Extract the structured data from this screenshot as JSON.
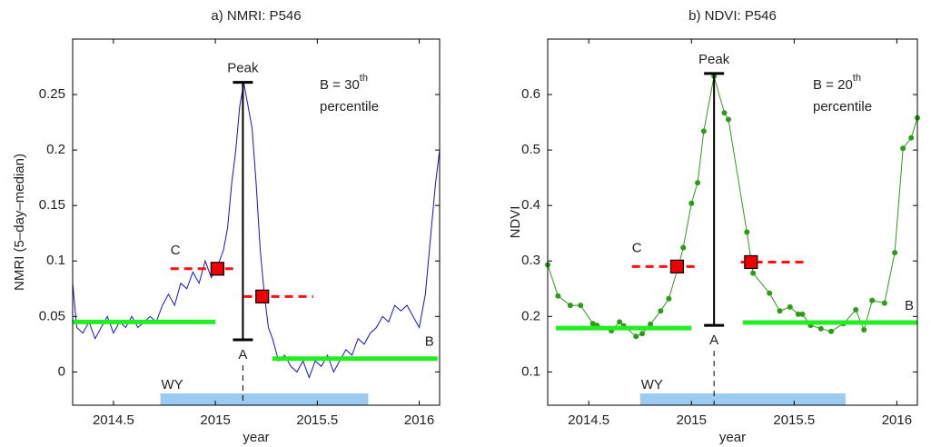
{
  "chart_data": [
    {
      "type": "line",
      "title": "a)  NMRI: P546",
      "x_label": "year",
      "y_label": "NMRI  (5–day–median)",
      "xlim": [
        2014.3,
        2016.1
      ],
      "ylim": [
        -0.03,
        0.3
      ],
      "xticks": [
        2014.5,
        2015,
        2015.5,
        2016
      ],
      "yticks": [
        0,
        0.05,
        0.1,
        0.15,
        0.2,
        0.25
      ],
      "color": "#1414c8",
      "markers": false,
      "x": [
        2014.3,
        2014.32,
        2014.35,
        2014.38,
        2014.41,
        2014.44,
        2014.47,
        2014.5,
        2014.53,
        2014.56,
        2014.59,
        2014.62,
        2014.65,
        2014.68,
        2014.71,
        2014.74,
        2014.77,
        2014.8,
        2014.83,
        2014.86,
        2014.89,
        2014.92,
        2014.95,
        2014.98,
        2015.01,
        2015.04,
        2015.06,
        2015.08,
        2015.1,
        2015.12,
        2015.14,
        2015.16,
        2015.18,
        2015.2,
        2015.22,
        2015.24,
        2015.26,
        2015.28,
        2015.31,
        2015.34,
        2015.37,
        2015.4,
        2015.43,
        2015.46,
        2015.49,
        2015.52,
        2015.55,
        2015.58,
        2015.61,
        2015.64,
        2015.67,
        2015.7,
        2015.73,
        2015.76,
        2015.79,
        2015.82,
        2015.85,
        2015.88,
        2015.91,
        2015.94,
        2015.97,
        2016.0,
        2016.03,
        2016.06,
        2016.08,
        2016.1
      ],
      "values": [
        0.08,
        0.04,
        0.035,
        0.045,
        0.03,
        0.04,
        0.05,
        0.035,
        0.045,
        0.04,
        0.05,
        0.04,
        0.045,
        0.05,
        0.045,
        0.06,
        0.07,
        0.06,
        0.08,
        0.075,
        0.09,
        0.08,
        0.1,
        0.085,
        0.095,
        0.11,
        0.13,
        0.17,
        0.2,
        0.24,
        0.26,
        0.24,
        0.22,
        0.17,
        0.11,
        0.07,
        0.04,
        0.03,
        0.01,
        0.015,
        0.005,
        0.0,
        0.01,
        -0.005,
        0.01,
        0.005,
        0.015,
        0.0,
        0.01,
        0.02,
        0.015,
        0.03,
        0.025,
        0.035,
        0.04,
        0.05,
        0.045,
        0.06,
        0.055,
        0.06,
        0.05,
        0.04,
        0.07,
        0.13,
        0.17,
        0.2
      ],
      "baseline": {
        "color": "#22ee22",
        "segments": [
          {
            "x": [
              2014.3,
              2015.0
            ],
            "value": 0.045
          },
          {
            "x": [
              2015.28,
              2016.09
            ],
            "value": 0.012,
            "label": "B"
          }
        ]
      },
      "thresholds": {
        "color": "#ff1010",
        "segments": [
          {
            "x": [
              2014.78,
              2015.11
            ],
            "value": 0.093,
            "marker_x": 2015.01,
            "label": "C"
          },
          {
            "x": [
              2015.14,
              2015.48
            ],
            "value": 0.068,
            "marker_x": 2015.23
          }
        ]
      },
      "peak": {
        "x": 2015.135,
        "values": [
          0.029,
          0.261
        ],
        "labels": [
          "A",
          "Peak"
        ]
      },
      "water_year": {
        "label": "WY",
        "x": [
          2014.73,
          2015.75
        ],
        "color": "#9ccbf2"
      },
      "note": {
        "text": "B = 30",
        "sup": "th",
        "line2": "percentile"
      }
    },
    {
      "type": "line",
      "title": "b)  NDVI: P546",
      "x_label": "year",
      "y_label": "NDVI",
      "xlim": [
        2014.3,
        2016.1
      ],
      "ylim": [
        0.04,
        0.7
      ],
      "xticks": [
        2014.5,
        2015,
        2015.5,
        2016
      ],
      "yticks": [
        0.1,
        0.2,
        0.3,
        0.4,
        0.5,
        0.6
      ],
      "color": "#2e9a1a",
      "markers": true,
      "x": [
        2014.3,
        2014.35,
        2014.41,
        2014.46,
        2014.52,
        2014.54,
        2014.61,
        2014.65,
        2014.67,
        2014.73,
        2014.76,
        2014.8,
        2014.85,
        2014.89,
        2014.94,
        2014.96,
        2015.0,
        2015.03,
        2015.06,
        2015.11,
        2015.16,
        2015.18,
        2015.27,
        2015.3,
        2015.38,
        2015.43,
        2015.48,
        2015.52,
        2015.54,
        2015.58,
        2015.63,
        2015.68,
        2015.74,
        2015.8,
        2015.84,
        2015.88,
        2015.94,
        2015.99,
        2016.03,
        2016.07,
        2016.1
      ],
      "values": [
        0.293,
        0.237,
        0.22,
        0.22,
        0.187,
        0.184,
        0.174,
        0.19,
        0.183,
        0.164,
        0.169,
        0.186,
        0.21,
        0.232,
        0.295,
        0.324,
        0.404,
        0.441,
        0.534,
        0.633,
        0.567,
        0.555,
        0.352,
        0.278,
        0.242,
        0.21,
        0.217,
        0.204,
        0.204,
        0.184,
        0.178,
        0.173,
        0.187,
        0.212,
        0.176,
        0.229,
        0.224,
        0.315,
        0.503,
        0.522,
        0.558
      ],
      "baseline": {
        "color": "#22ee22",
        "segments": [
          {
            "x": [
              2014.34,
              2015.0
            ],
            "value": 0.179
          },
          {
            "x": [
              2015.25,
              2016.1
            ],
            "value": 0.189,
            "label": "B"
          }
        ]
      },
      "thresholds": {
        "color": "#ff1010",
        "segments": [
          {
            "x": [
              2014.71,
              2015.04
            ],
            "value": 0.29,
            "marker_x": 2014.93,
            "label": "C"
          },
          {
            "x": [
              2015.24,
              2015.55
            ],
            "value": 0.298,
            "marker_x": 2015.29
          }
        ]
      },
      "peak": {
        "x": 2015.11,
        "values": [
          0.184,
          0.638
        ],
        "labels": [
          "A",
          "Peak"
        ]
      },
      "water_year": {
        "label": "WY",
        "x": [
          2014.75,
          2015.75
        ],
        "color": "#9ccbf2"
      },
      "note": {
        "text": "B = 20",
        "sup": "th",
        "line2": "percentile"
      }
    }
  ]
}
